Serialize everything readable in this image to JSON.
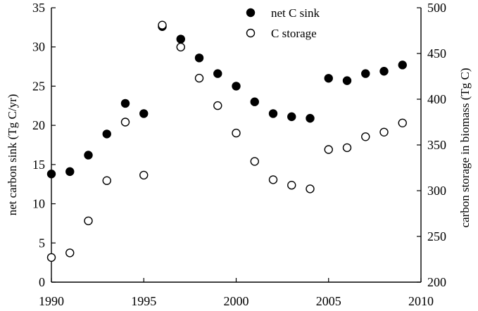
{
  "chart_data": {
    "type": "scatter",
    "x": [
      1990,
      1991,
      1992,
      1993,
      1994,
      1995,
      1996,
      1997,
      1998,
      1999,
      2000,
      2001,
      2002,
      2003,
      2004,
      2005,
      2006,
      2007,
      2008,
      2009
    ],
    "xlim": [
      1990,
      2010
    ],
    "xticks": [
      "1990",
      "1995",
      "2000",
      "2005",
      "2010"
    ],
    "ylabel": "net carbon sink (Tg C/yr)",
    "ylim": [
      0,
      35
    ],
    "yticks": [
      "0",
      "5",
      "10",
      "15",
      "20",
      "25",
      "30",
      "35"
    ],
    "y2label": "carbon storage in biomass (Tg C)",
    "y2lim": [
      200,
      500
    ],
    "y2ticks": [
      "200",
      "250",
      "300",
      "350",
      "400",
      "450",
      "500"
    ],
    "grid": false,
    "legend_position": "top-right",
    "series": [
      {
        "name": "net C sink",
        "axis": "left",
        "marker": "filled-circle",
        "values": [
          13.8,
          14.1,
          16.2,
          18.9,
          22.8,
          21.5,
          32.6,
          31.0,
          28.6,
          26.6,
          25.0,
          23.0,
          21.5,
          21.1,
          20.9,
          26.0,
          25.7,
          26.6,
          26.9,
          27.7
        ]
      },
      {
        "name": "C storage",
        "axis": "right",
        "marker": "open-circle",
        "values": [
          227,
          232,
          267,
          311,
          375,
          317,
          481,
          457,
          423,
          393,
          363,
          332,
          312,
          306,
          302,
          345,
          347,
          359,
          364,
          374
        ]
      }
    ],
    "colors": {
      "marker": "#000000",
      "open_fill": "#ffffff",
      "axis": "#000000"
    }
  }
}
